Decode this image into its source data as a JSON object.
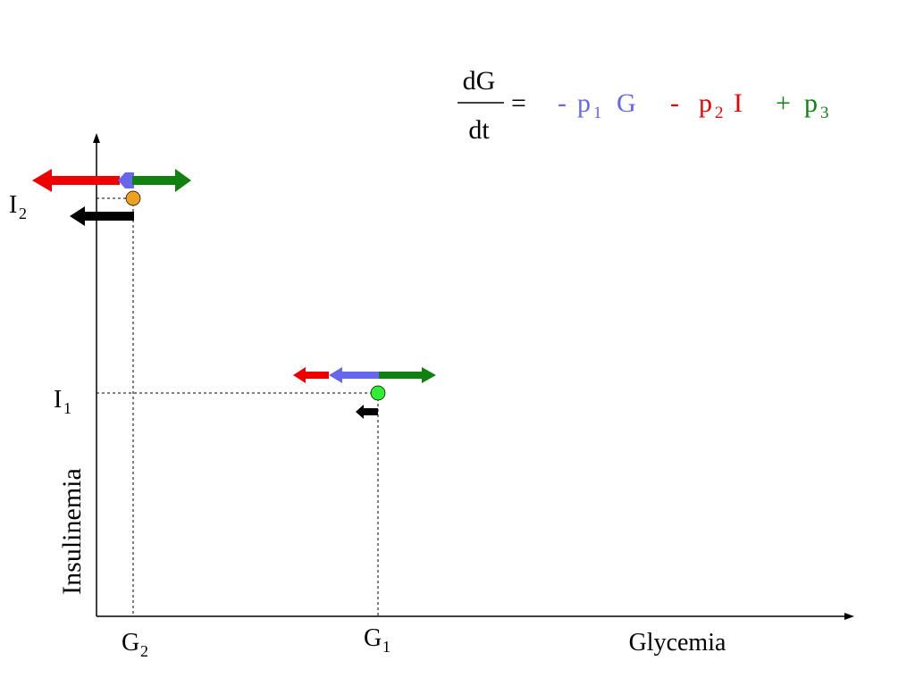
{
  "colors": {
    "p1_term": "#6666ee",
    "p2_term": "#ee0000",
    "p3_term": "#108010",
    "net_arrow": "#000000",
    "point_g2": "#f0a020",
    "point_g1": "#30ee30",
    "axis": "#000000"
  },
  "equation": {
    "numerator": "dG",
    "denominator": "dt",
    "equals": "=",
    "p1_sign": "-",
    "p1_coef": "p",
    "p1_sub": "1",
    "p1_var": "G",
    "p2_sign": "-",
    "p2_coef": "p",
    "p2_sub": "2",
    "p2_var": "I",
    "p3_sign": "+",
    "p3_coef": "p",
    "p3_sub": "3"
  },
  "axes": {
    "y_title": "Insulinemia",
    "x_title": "Glycemia"
  },
  "labels": {
    "i2_main": "I",
    "i2_sub": "2",
    "i1_main": "I",
    "i1_sub": "1",
    "g2_main": "G",
    "g2_sub": "2",
    "g1_main": "G",
    "g1_sub": "1"
  }
}
